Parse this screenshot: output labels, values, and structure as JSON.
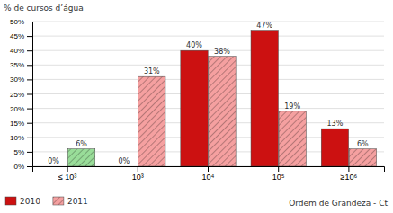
{
  "chart_data": {
    "type": "bar",
    "categories": [
      "≤ 10³",
      "10³",
      "10⁴",
      "10⁵",
      "≥10⁶"
    ],
    "series": [
      {
        "name": "2010",
        "color": "#cc1111",
        "values": [
          0,
          0,
          40,
          47,
          13
        ],
        "value_labels": [
          "0%",
          "0%",
          "40%",
          "47%",
          "13%"
        ]
      },
      {
        "name": "2011",
        "color": "#f5a0a0",
        "colors": [
          "#99dd99",
          "#f5a0a0",
          "#f5a0a0",
          "#f5a0a0",
          "#f5a0a0"
        ],
        "values": [
          6,
          31,
          38,
          19,
          6
        ],
        "value_labels": [
          "6%",
          "31%",
          "38%",
          "19%",
          "6%"
        ]
      }
    ],
    "ylabel": "% de cursos d’água",
    "xlabel": "Ordem de Grandeza - Ct",
    "ylim": [
      0,
      50
    ],
    "yticks": [
      {
        "value": 0,
        "label": "0%"
      },
      {
        "value": 5,
        "label": "5%"
      },
      {
        "value": 10,
        "label": "10%"
      },
      {
        "value": 15,
        "label": "15%"
      },
      {
        "value": 20,
        "label": "20%"
      },
      {
        "value": 25,
        "label": "25%"
      },
      {
        "value": 30,
        "label": "30%"
      },
      {
        "value": 35,
        "label": "35%"
      },
      {
        "value": 40,
        "label": "40%"
      },
      {
        "value": 45,
        "label": "45%"
      },
      {
        "value": 50,
        "label": "50%"
      }
    ],
    "grid": true,
    "legend": "bottom",
    "data_labels": true
  }
}
